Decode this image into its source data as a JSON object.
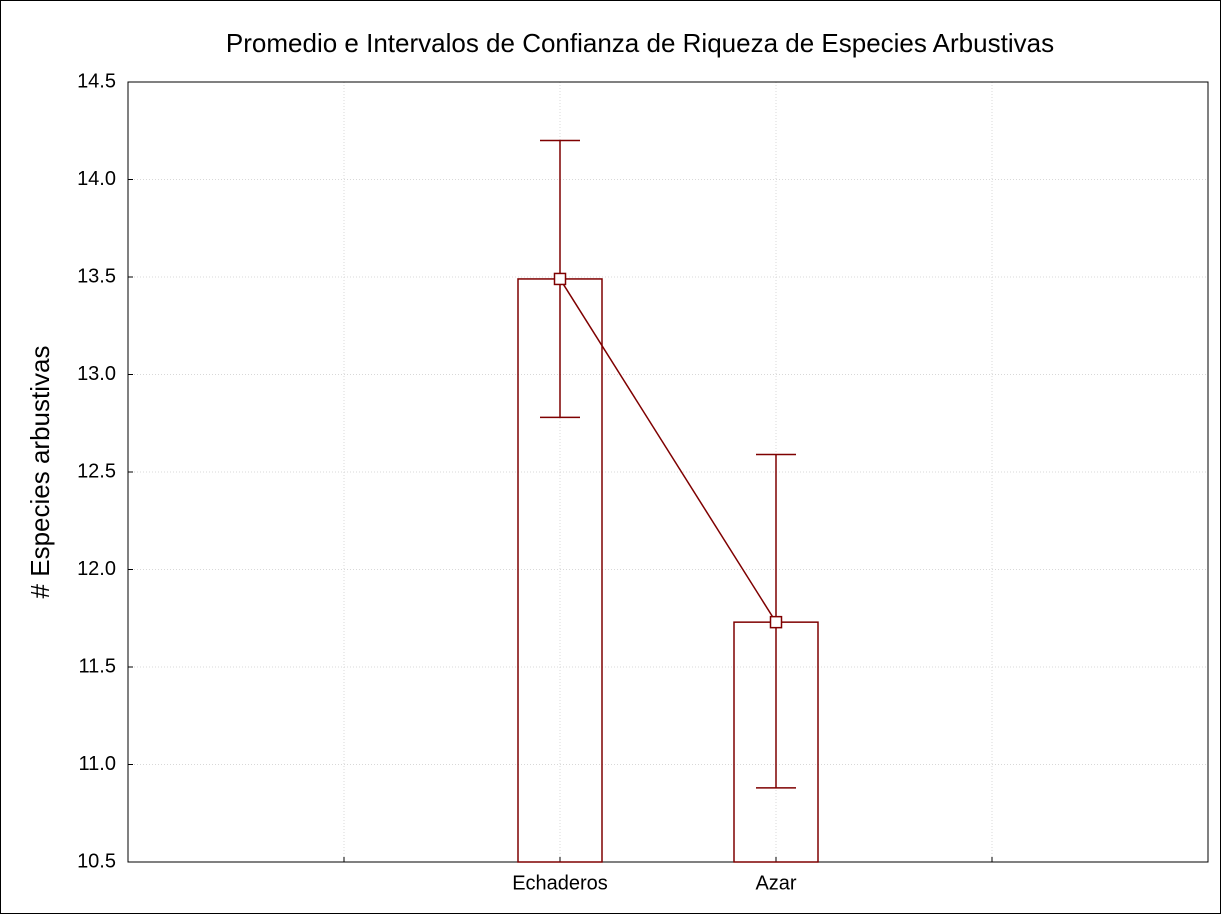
{
  "chart_data": {
    "type": "bar",
    "title": "Promedio e Intervalos de Confianza de Riqueza de Especies Arbustivas",
    "y_label": "# Especies arbustivas",
    "categories": [
      null,
      "Echaderos",
      "Azar",
      null
    ],
    "values": [
      null,
      13.49,
      11.73,
      null
    ],
    "ci_lower": [
      null,
      12.78,
      10.88,
      null
    ],
    "ci_upper": [
      null,
      14.2,
      12.59,
      null
    ],
    "color": "#7f0000",
    "ylim": [
      10.5,
      14.5
    ],
    "yticks": [
      10.5,
      {
        "value": 11,
        "label": "11.0"
      },
      11.5,
      {
        "value": 12,
        "label": "12.0"
      },
      12.5,
      {
        "value": 13,
        "label": "13.0"
      },
      13.5,
      {
        "value": 14,
        "label": "14.0"
      },
      14.5
    ],
    "grid": true
  }
}
